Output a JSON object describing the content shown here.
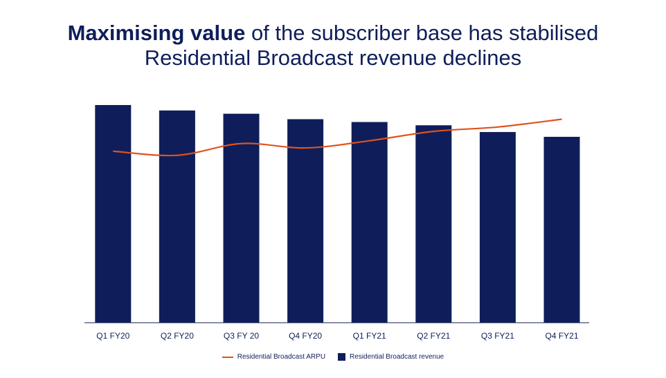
{
  "title": {
    "part1": "Maximising value",
    "part2": " of the subscriber base has stabilised",
    "line2": "Residential Broadcast revenue declines"
  },
  "chart_data": {
    "type": "bar",
    "categories": [
      "Q1 FY20",
      "Q2 FY20",
      "Q3 FY 20",
      "Q4 FY20",
      "Q1 FY21",
      "Q2 FY21",
      "Q3 FY21",
      "Q4 FY21"
    ],
    "series": [
      {
        "name": "Residential Broadcast revenue",
        "kind": "bar",
        "color": "#0f1e5a",
        "values": [
          100,
          97.5,
          96,
          93.5,
          92.2,
          90.7,
          87.6,
          85.4
        ]
      },
      {
        "name": "Residential Broadcast ARPU",
        "kind": "line",
        "color": "#e0521c",
        "values": [
          78.8,
          76.9,
          82.3,
          80.3,
          83.6,
          87.9,
          89.9,
          93.5
        ]
      }
    ],
    "ylim": [
      0,
      100
    ],
    "grid": false,
    "legend_position": "bottom",
    "xlabel": "",
    "ylabel": ""
  },
  "legend": {
    "arpu_label": "Residential Broadcast ARPU",
    "revenue_label": "Residential Broadcast revenue"
  }
}
